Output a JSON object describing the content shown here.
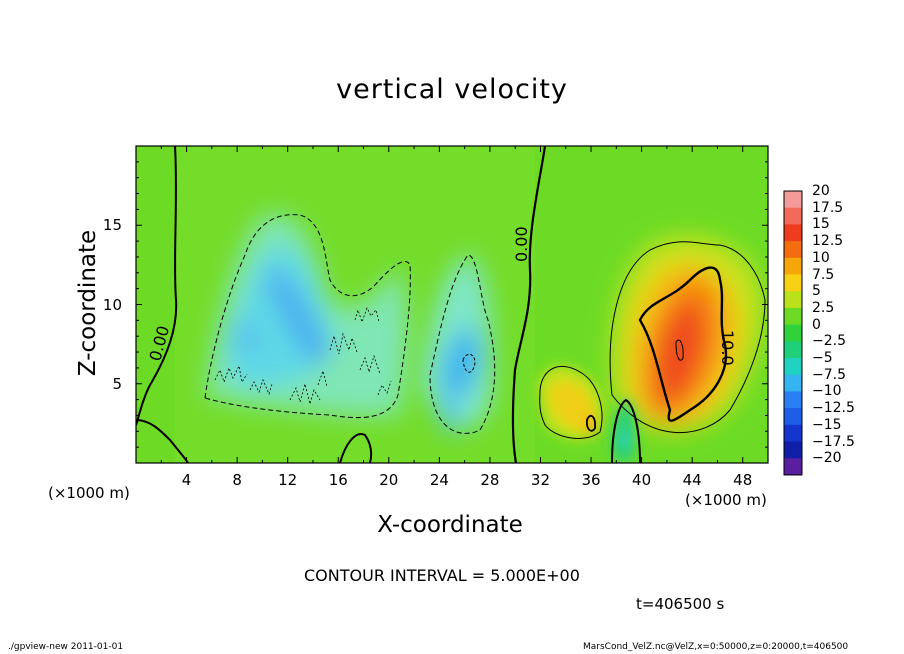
{
  "chart_data": {
    "type": "heatmap",
    "title": "vertical velocity",
    "xlabel": "X-coordinate",
    "ylabel": "Z-coordinate",
    "x_unit": "(×1000 m)",
    "xlim": [
      0,
      50
    ],
    "ylim": [
      0,
      20
    ],
    "x_ticks": [
      4,
      8,
      12,
      16,
      20,
      24,
      28,
      32,
      36,
      40,
      44,
      48
    ],
    "y_ticks": [
      5,
      10,
      15
    ],
    "colorbar": {
      "levels": [
        "20",
        "17.5",
        "15",
        "12.5",
        "10",
        "7.5",
        "5",
        "2.5",
        "0",
        "−2.5",
        "−5",
        "−7.5",
        "−10",
        "−12.5",
        "−15",
        "−17.5",
        "−20"
      ],
      "colors": [
        "#f59a9a",
        "#f26a5a",
        "#ee3c1e",
        "#f36c10",
        "#f7a60a",
        "#f7d114",
        "#b9e21a",
        "#6ddb26",
        "#2fd23a",
        "#1fcf7a",
        "#1fd2c2",
        "#35b4ef",
        "#2a7ff2",
        "#1e5de8",
        "#1535cf",
        "#0f1fa8",
        "#5a1fa0"
      ],
      "value_range": [
        -20,
        20
      ]
    },
    "features": [
      {
        "name": "updraft core",
        "x_center": 43,
        "z_center": 7.5,
        "max_value": 15,
        "contour_label": "10.0"
      },
      {
        "name": "updraft",
        "x_center": 34,
        "z_center": 4,
        "max_value": 10
      },
      {
        "name": "downdraft",
        "x_center": 12,
        "z_center": 10,
        "min_value": -10
      },
      {
        "name": "downdraft",
        "x_center": 26.5,
        "z_center": 6,
        "min_value": -12.5
      }
    ],
    "contour_labels": [
      "0.00",
      "0.00",
      "10.0"
    ],
    "contour_interval": "CONTOUR INTERVAL = 5.000E+00",
    "time": "t=406500 s"
  },
  "footer": {
    "left": "./gpview-new   2011-01-01",
    "right": "MarsCond_VelZ.nc@VelZ,x=0:50000,z=0:20000,t=406500"
  }
}
